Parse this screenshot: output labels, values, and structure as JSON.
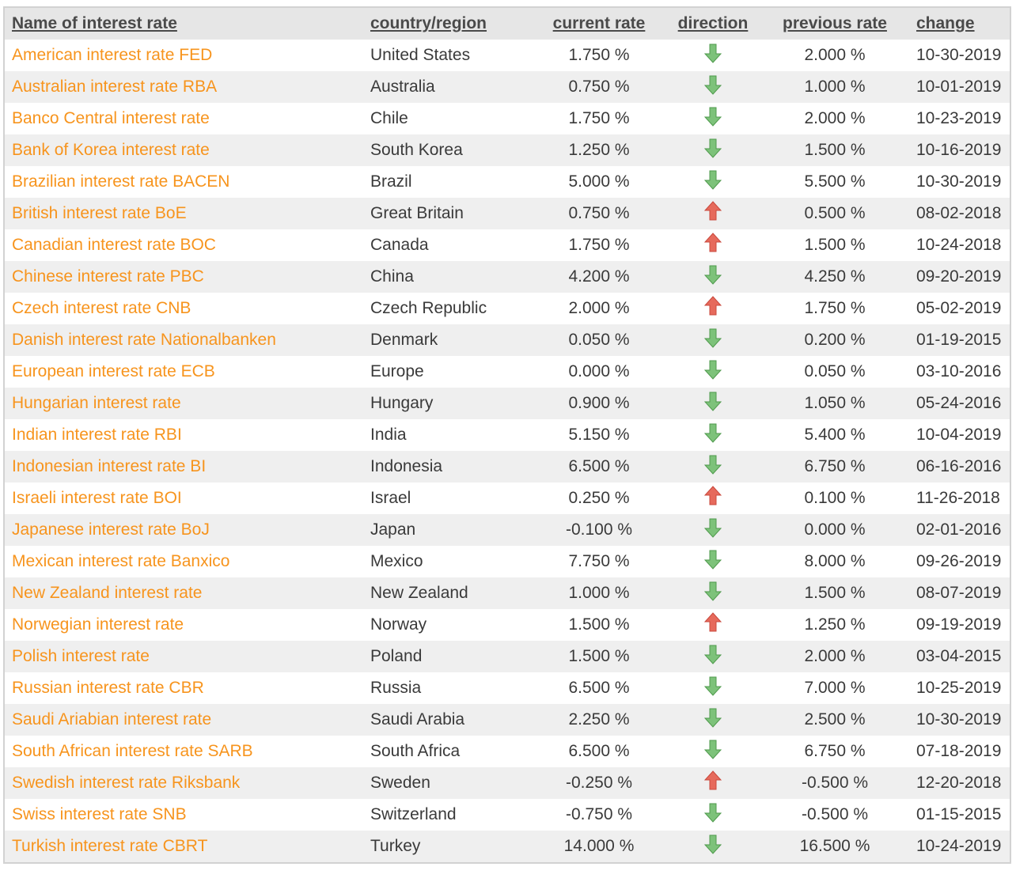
{
  "headers": {
    "name": "Name of interest rate",
    "country": "country/region",
    "current": "current rate",
    "direction": "direction",
    "previous": "previous rate",
    "change": "change"
  },
  "colors": {
    "link": "#f7941d",
    "down_arrow": "#7dc27a",
    "up_arrow": "#e66a5c",
    "header_bg": "#e6e6e6",
    "stripe_bg": "#efefef"
  },
  "rows": [
    {
      "name": "American interest rate FED",
      "country": "United States",
      "current": "1.750 %",
      "direction": "down",
      "previous": "2.000 %",
      "change": "10-30-2019"
    },
    {
      "name": "Australian interest rate RBA",
      "country": "Australia",
      "current": "0.750 %",
      "direction": "down",
      "previous": "1.000 %",
      "change": "10-01-2019"
    },
    {
      "name": "Banco Central interest rate",
      "country": "Chile",
      "current": "1.750 %",
      "direction": "down",
      "previous": "2.000 %",
      "change": "10-23-2019"
    },
    {
      "name": "Bank of Korea interest rate",
      "country": "South Korea",
      "current": "1.250 %",
      "direction": "down",
      "previous": "1.500 %",
      "change": "10-16-2019"
    },
    {
      "name": "Brazilian interest rate BACEN",
      "country": "Brazil",
      "current": "5.000 %",
      "direction": "down",
      "previous": "5.500 %",
      "change": "10-30-2019"
    },
    {
      "name": "British interest rate BoE",
      "country": "Great Britain",
      "current": "0.750 %",
      "direction": "up",
      "previous": "0.500 %",
      "change": "08-02-2018"
    },
    {
      "name": "Canadian interest rate BOC",
      "country": "Canada",
      "current": "1.750 %",
      "direction": "up",
      "previous": "1.500 %",
      "change": "10-24-2018"
    },
    {
      "name": "Chinese interest rate PBC",
      "country": "China",
      "current": "4.200 %",
      "direction": "down",
      "previous": "4.250 %",
      "change": "09-20-2019"
    },
    {
      "name": "Czech interest rate CNB",
      "country": "Czech Republic",
      "current": "2.000 %",
      "direction": "up",
      "previous": "1.750 %",
      "change": "05-02-2019"
    },
    {
      "name": "Danish interest rate Nationalbanken",
      "country": "Denmark",
      "current": "0.050 %",
      "direction": "down",
      "previous": "0.200 %",
      "change": "01-19-2015"
    },
    {
      "name": "European interest rate ECB",
      "country": "Europe",
      "current": "0.000 %",
      "direction": "down",
      "previous": "0.050 %",
      "change": "03-10-2016"
    },
    {
      "name": "Hungarian interest rate",
      "country": "Hungary",
      "current": "0.900 %",
      "direction": "down",
      "previous": "1.050 %",
      "change": "05-24-2016"
    },
    {
      "name": "Indian interest rate RBI",
      "country": "India",
      "current": "5.150 %",
      "direction": "down",
      "previous": "5.400 %",
      "change": "10-04-2019"
    },
    {
      "name": "Indonesian interest rate BI",
      "country": "Indonesia",
      "current": "6.500 %",
      "direction": "down",
      "previous": "6.750 %",
      "change": "06-16-2016"
    },
    {
      "name": "Israeli interest rate BOI",
      "country": "Israel",
      "current": "0.250 %",
      "direction": "up",
      "previous": "0.100 %",
      "change": "11-26-2018"
    },
    {
      "name": "Japanese interest rate BoJ",
      "country": "Japan",
      "current": "-0.100 %",
      "direction": "down",
      "previous": "0.000 %",
      "change": "02-01-2016"
    },
    {
      "name": "Mexican interest rate Banxico",
      "country": "Mexico",
      "current": "7.750 %",
      "direction": "down",
      "previous": "8.000 %",
      "change": "09-26-2019"
    },
    {
      "name": "New Zealand interest rate",
      "country": "New Zealand",
      "current": "1.000 %",
      "direction": "down",
      "previous": "1.500 %",
      "change": "08-07-2019"
    },
    {
      "name": "Norwegian interest rate",
      "country": "Norway",
      "current": "1.500 %",
      "direction": "up",
      "previous": "1.250 %",
      "change": "09-19-2019"
    },
    {
      "name": "Polish interest rate",
      "country": "Poland",
      "current": "1.500 %",
      "direction": "down",
      "previous": "2.000 %",
      "change": "03-04-2015"
    },
    {
      "name": "Russian interest rate CBR",
      "country": "Russia",
      "current": "6.500 %",
      "direction": "down",
      "previous": "7.000 %",
      "change": "10-25-2019"
    },
    {
      "name": "Saudi Ariabian interest rate",
      "country": "Saudi Arabia",
      "current": "2.250 %",
      "direction": "down",
      "previous": "2.500 %",
      "change": "10-30-2019"
    },
    {
      "name": "South African interest rate SARB",
      "country": "South Africa",
      "current": "6.500 %",
      "direction": "down",
      "previous": "6.750 %",
      "change": "07-18-2019"
    },
    {
      "name": "Swedish interest rate Riksbank",
      "country": "Sweden",
      "current": "-0.250 %",
      "direction": "up",
      "previous": "-0.500 %",
      "change": "12-20-2018"
    },
    {
      "name": "Swiss interest rate SNB",
      "country": "Switzerland",
      "current": "-0.750 %",
      "direction": "down",
      "previous": "-0.500 %",
      "change": "01-15-2015"
    },
    {
      "name": "Turkish interest rate CBRT",
      "country": "Turkey",
      "current": "14.000 %",
      "direction": "down",
      "previous": "16.500 %",
      "change": "10-24-2019"
    }
  ]
}
